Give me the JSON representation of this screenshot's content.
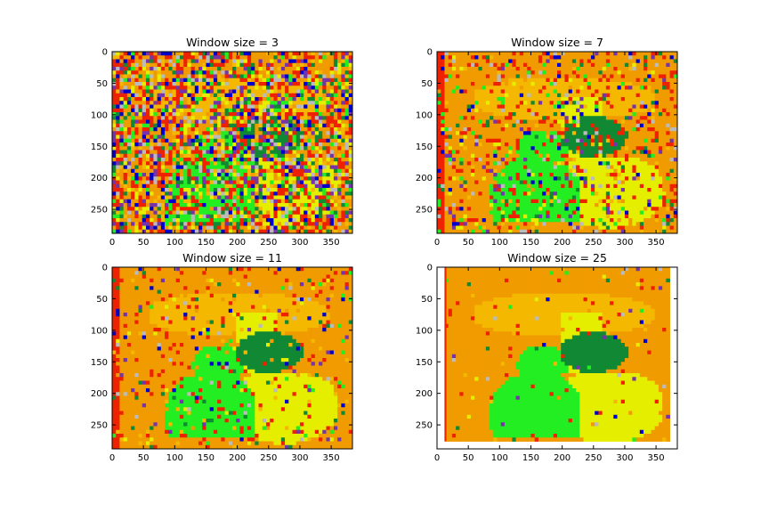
{
  "chart_data": [
    {
      "type": "heatmap",
      "title": "Window size = 3",
      "xlim": [
        0,
        384
      ],
      "ylim": [
        288,
        0
      ],
      "xticks": [
        0,
        50,
        100,
        150,
        200,
        250,
        300,
        350
      ],
      "yticks": [
        0,
        50,
        100,
        150,
        200,
        250
      ],
      "noise": 0.6
    },
    {
      "type": "heatmap",
      "title": "Window size = 7",
      "xlim": [
        0,
        384
      ],
      "ylim": [
        288,
        0
      ],
      "xticks": [
        0,
        50,
        100,
        150,
        200,
        250,
        300,
        350
      ],
      "yticks": [
        0,
        50,
        100,
        150,
        200,
        250
      ],
      "noise": 0.2
    },
    {
      "type": "heatmap",
      "title": "Window size = 11",
      "xlim": [
        0,
        384
      ],
      "ylim": [
        288,
        0
      ],
      "xticks": [
        0,
        50,
        100,
        150,
        200,
        250,
        300,
        350
      ],
      "yticks": [
        0,
        50,
        100,
        150,
        200,
        250
      ],
      "noise": 0.1
    },
    {
      "type": "heatmap",
      "title": "Window size = 25",
      "xlim": [
        0,
        384
      ],
      "ylim": [
        288,
        0
      ],
      "xticks": [
        0,
        50,
        100,
        150,
        200,
        250,
        300,
        350
      ],
      "yticks": [
        0,
        50,
        100,
        150,
        200,
        250
      ],
      "noise": 0.03
    }
  ],
  "colors": {
    "background": "#f09b00",
    "red": "#ee2200",
    "light_orange": "#f5b800",
    "yellow": "#e6ee00",
    "light_green": "#22ee22",
    "dark_green": "#118833",
    "blue": "#0000cc",
    "purple": "#7733aa",
    "gray": "#bbbbbb"
  }
}
